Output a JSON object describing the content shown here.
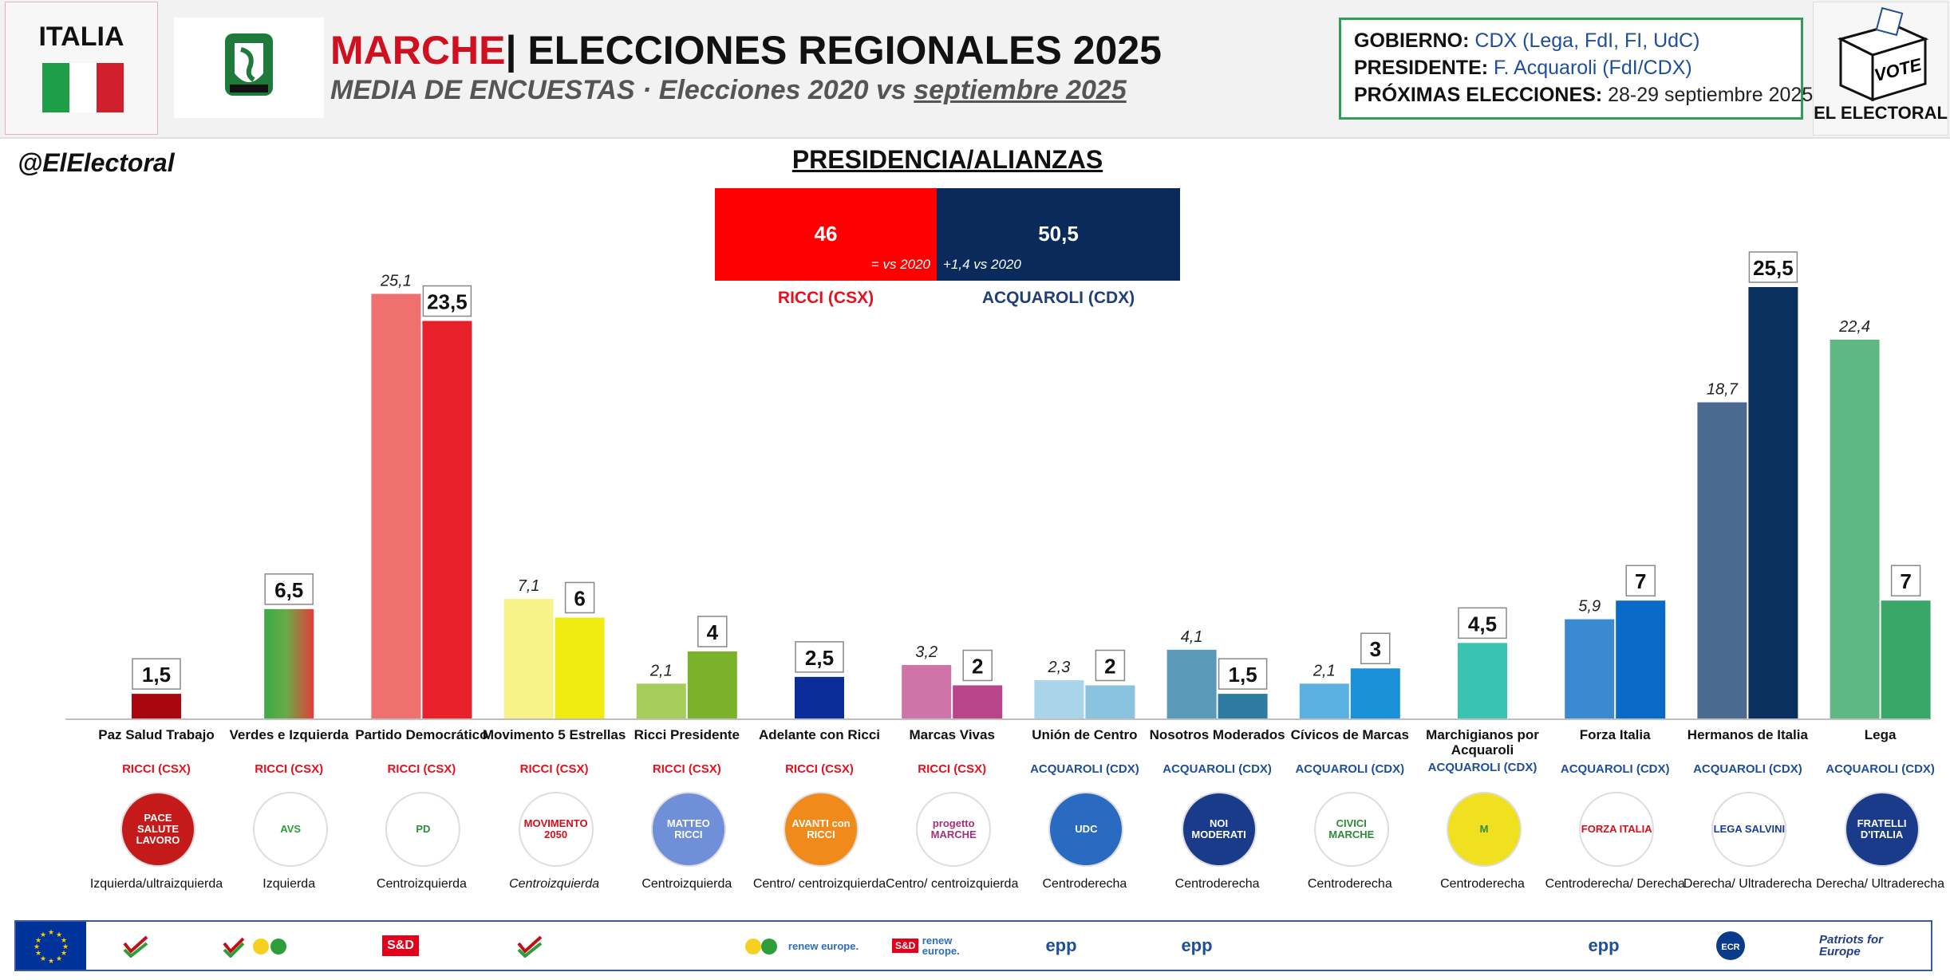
{
  "header": {
    "country": "ITALIA",
    "region": "MARCHE",
    "title_rest": "| ELECCIONES REGIONALES 2025",
    "subtitle_prefix": "MEDIA DE ENCUESTAS · Elecciones 2020 vs ",
    "subtitle_date": "septiembre 2025",
    "gobierno_label": "GOBIERNO:",
    "gobierno_value": "CDX (Lega, FdI, FI, UdC)",
    "presidente_label": "PRESIDENTE:",
    "presidente_value": "F. Acquaroli (FdI/CDX)",
    "proximas_label": "PRÓXIMAS ELECCIONES:",
    "proximas_value": "28-29 septiembre 2025",
    "vote_box_text": "VOTE",
    "brand": "EL ELECTORAL",
    "handle": "@ElElectoral"
  },
  "presidency": {
    "title": "PRESIDENCIA/ALIANZAS",
    "csx": {
      "value": "46",
      "note": "= vs 2020",
      "name": "RICCI (CSX)",
      "color": "#ff0000"
    },
    "cdx": {
      "value": "50,5",
      "note": "+1,4 vs 2020",
      "name": "ACQUAROLI (CDX)",
      "color": "#0a2a5c"
    }
  },
  "chart_data": {
    "type": "bar",
    "title": "MEDIA DE ENCUESTAS · Elecciones 2020 vs septiembre 2025",
    "series_names": [
      "Elecciones 2020",
      "septiembre 2025"
    ],
    "ylim": [
      0,
      26
    ],
    "parties": [
      {
        "name": "Paz Salud Trabajo",
        "v2020": null,
        "l2020": "",
        "v2025": 1.5,
        "l2025": "1,5",
        "alliance": "RICCI (CSX)",
        "ideology": "Izquierda/ultraizquierda",
        "italic": false,
        "c2020": "#c88",
        "c2025": "#a8070f",
        "logo": "PACE SALUTE LAVORO",
        "logo_bg": "#c41a1a",
        "logo_fg": "#ffffff"
      },
      {
        "name": "Verdes e Izquierda",
        "v2020": null,
        "l2020": "",
        "v2025": 6.5,
        "l2025": "6,5",
        "alliance": "RICCI (CSX)",
        "ideology": "Izquierda",
        "italic": false,
        "c2020": "#9c9",
        "c2025": "grad",
        "logo": "AVS",
        "logo_bg": "#ffffff",
        "logo_fg": "#2e9e3a"
      },
      {
        "name": "Partido Democrático",
        "v2020": 25.1,
        "l2020": "25,1",
        "v2025": 23.5,
        "l2025": "23,5",
        "alliance": "RICCI (CSX)",
        "ideology": "Centroizquierda",
        "italic": false,
        "c2020": "#f07070",
        "c2025": "#e8202a",
        "logo": "PD",
        "logo_bg": "#ffffff",
        "logo_fg": "#2e8b3a"
      },
      {
        "name": "Movimento 5 Estrellas",
        "v2020": 7.1,
        "l2020": "7,1",
        "v2025": 6,
        "l2025": "6",
        "alliance": "RICCI (CSX)",
        "ideology": "Centroizquierda",
        "italic": true,
        "c2020": "#f7f38a",
        "c2025": "#f0eb10",
        "logo": "MOVIMENTO 2050",
        "logo_bg": "#ffffff",
        "logo_fg": "#d0101e"
      },
      {
        "name": "Ricci Presidente",
        "v2020": 2.1,
        "l2020": "2,1",
        "v2025": 4,
        "l2025": "4",
        "alliance": "RICCI (CSX)",
        "ideology": "Centroizquierda",
        "italic": false,
        "c2020": "#a6cc5a",
        "c2025": "#7ab32a",
        "logo": "MATTEO RICCI",
        "logo_bg": "#6f8fd9",
        "logo_fg": "#ffffff"
      },
      {
        "name": "Adelante con Ricci",
        "v2020": null,
        "l2020": "",
        "v2025": 2.5,
        "l2025": "2,5",
        "alliance": "RICCI (CSX)",
        "ideology": "Centro/ centroizquierda",
        "italic": false,
        "c2020": "#9ab",
        "c2025": "#0a2d9a",
        "logo": "AVANTI con RICCI",
        "logo_bg": "#f08a1a",
        "logo_fg": "#ffffff"
      },
      {
        "name": "Marcas Vivas",
        "v2020": 3.2,
        "l2020": "3,2",
        "v2025": 2,
        "l2025": "2",
        "alliance": "RICCI (CSX)",
        "ideology": "Centro/ centroizquierda",
        "italic": false,
        "c2020": "#cf74a8",
        "c2025": "#b8448a",
        "logo": "progetto MARCHE",
        "logo_bg": "#ffffff",
        "logo_fg": "#a0307a"
      },
      {
        "name": "Unión de Centro",
        "v2020": 2.3,
        "l2020": "2,3",
        "v2025": 2,
        "l2025": "2",
        "alliance": "ACQUAROLI (CDX)",
        "ideology": "Centroderecha",
        "italic": false,
        "c2020": "#a9d4ea",
        "c2025": "#8ac3e0",
        "logo": "UDC",
        "logo_bg": "#2a6ac0",
        "logo_fg": "#ffffff"
      },
      {
        "name": "Nosotros Moderados",
        "v2020": 4.1,
        "l2020": "4,1",
        "v2025": 1.5,
        "l2025": "1,5",
        "alliance": "ACQUAROLI (CDX)",
        "ideology": "Centroderecha",
        "italic": false,
        "c2020": "#5a9ab8",
        "c2025": "#2e7aa0",
        "logo": "NOI MODERATI",
        "logo_bg": "#1a3a8a",
        "logo_fg": "#ffffff"
      },
      {
        "name": "Cívicos de Marcas",
        "v2020": 2.1,
        "l2020": "2,1",
        "v2025": 3,
        "l2025": "3",
        "alliance": "ACQUAROLI (CDX)",
        "ideology": "Centroderecha",
        "italic": false,
        "c2020": "#5ab0e0",
        "c2025": "#1a90d8",
        "logo": "CIVICI MARCHE",
        "logo_bg": "#ffffff",
        "logo_fg": "#2e8b3a"
      },
      {
        "name": "Marchigianos por Acquaroli",
        "v2020": null,
        "l2020": "",
        "v2025": 4.5,
        "l2025": "4,5",
        "alliance": "ACQUAROLI (CDX)",
        "ideology": "Centroderecha",
        "italic": false,
        "c2020": "#9dd",
        "c2025": "#38c4b0",
        "logo": "M",
        "logo_bg": "#f0e020",
        "logo_fg": "#2e8b3a"
      },
      {
        "name": "Forza Italia",
        "v2020": 5.9,
        "l2020": "5,9",
        "v2025": 7,
        "l2025": "7",
        "alliance": "ACQUAROLI (CDX)",
        "ideology": "Centroderecha/ Derecha",
        "italic": false,
        "c2020": "#3a8ad0",
        "c2025": "#0a6ac8",
        "logo": "FORZA ITALIA",
        "logo_bg": "#ffffff",
        "logo_fg": "#d0101e"
      },
      {
        "name": "Hermanos de Italia",
        "v2020": 18.7,
        "l2020": "18,7",
        "v2025": 25.5,
        "l2025": "25,5",
        "alliance": "ACQUAROLI (CDX)",
        "ideology": "Derecha/ Ultraderecha",
        "italic": false,
        "c2020": "#4a6a90",
        "c2025": "#0a3060",
        "logo": "LEGA SALVINI",
        "logo_bg": "#ffffff",
        "logo_fg": "#1a3a9a"
      },
      {
        "name": "Lega",
        "v2020": 22.4,
        "l2020": "22,4",
        "v2025": 7,
        "l2025": "7",
        "alliance": "ACQUAROLI (CDX)",
        "ideology": "Derecha/ Ultraderecha",
        "italic": false,
        "c2020": "#5fb884",
        "c2025": "#38a868",
        "logo": "FRATELLI D'ITALIA",
        "logo_bg": "#1a3a8a",
        "logo_fg": "#ffffff"
      }
    ]
  },
  "eu_groups": {
    "sd": "S&D",
    "renew": "renew europe.",
    "epp": "epp",
    "ecr": "ECR",
    "patriots": "Patriots for Europe"
  },
  "colors": {
    "accent_red": "#d0101e",
    "cdx_blue": "#1f4e9a",
    "green_border": "#2e9e58"
  }
}
